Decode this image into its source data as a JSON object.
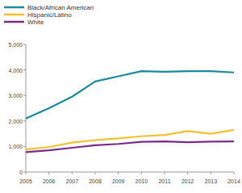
{
  "chart_data": {
    "type": "line",
    "x": [
      2005,
      2006,
      2007,
      2008,
      2009,
      2010,
      2011,
      2012,
      2013,
      2014
    ],
    "series": [
      {
        "name": "Black/African American",
        "color": "#1a8b9d",
        "values": [
          2100,
          2500,
          2950,
          3550,
          3750,
          3950,
          3930,
          3950,
          3950,
          3900
        ]
      },
      {
        "name": "Hispanic/Latino",
        "color": "#f2c12e",
        "values": [
          880,
          980,
          1150,
          1250,
          1320,
          1400,
          1450,
          1600,
          1500,
          1650
        ]
      },
      {
        "name": "White",
        "color": "#7b2c8b",
        "values": [
          780,
          850,
          950,
          1050,
          1100,
          1180,
          1200,
          1170,
          1190,
          1200
        ]
      }
    ],
    "xlim": [
      2005,
      2014
    ],
    "xticks": [
      2005,
      2006,
      2007,
      2008,
      2009,
      2010,
      2011,
      2012,
      2013,
      2014
    ],
    "ylim": [
      0,
      5000
    ],
    "yticks": [
      0,
      {
        "value": 1000,
        "label": "1,000"
      },
      {
        "value": 2000,
        "label": "2,000"
      },
      {
        "value": 3000,
        "label": "3,000"
      },
      {
        "value": 4000,
        "label": "4,000"
      },
      {
        "value": 5000,
        "label": "5,000"
      }
    ],
    "grid": false,
    "legend": "top-left"
  }
}
